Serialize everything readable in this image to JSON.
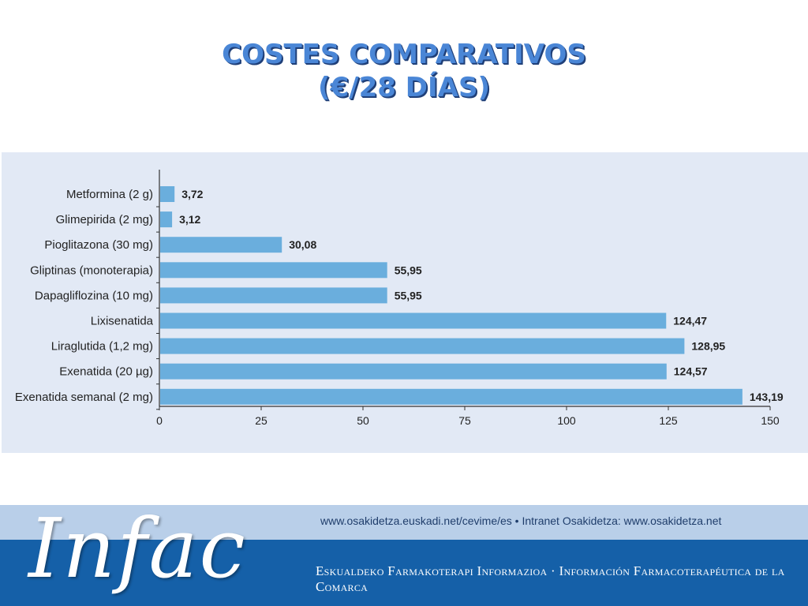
{
  "title": {
    "line1": "COSTES COMPARATIVOS",
    "line2": "(€/28 DÍAS)"
  },
  "chart_data": {
    "type": "bar",
    "orientation": "horizontal",
    "categories": [
      "Metformina (2 g)",
      "Glimepirida (2 mg)",
      "Pioglitazona (30 mg)",
      "Gliptinas (monoterapia)",
      "Dapagliflozina (10 mg)",
      "Lixisenatida",
      "Liraglutida (1,2 mg)",
      "Exenatida (20 µg)",
      "Exenatida semanal (2 mg)"
    ],
    "values": [
      3.72,
      3.12,
      30.08,
      55.95,
      55.95,
      124.47,
      128.95,
      124.57,
      143.19
    ],
    "data_labels": [
      "3,72",
      "3,12",
      "30,08",
      "55,95",
      "55,95",
      "124,47",
      "128,95",
      "124,57",
      "143,19"
    ],
    "xlim": [
      0,
      150
    ],
    "xticks": [
      0,
      25,
      50,
      75,
      100,
      125,
      150
    ],
    "xlabel": "",
    "ylabel": "",
    "grid": false,
    "bar_color": "#6aaedd"
  },
  "footer": {
    "logo_text": "Infac",
    "urls": "www.osakidetza.euskadi.net/cevime/es  •  Intranet Osakidetza: www.osakidetza.net",
    "tagline": "Eskualdeko Farmakoterapi Informazioa  ·  Información Farmacoterapéutica de la Comarca"
  }
}
